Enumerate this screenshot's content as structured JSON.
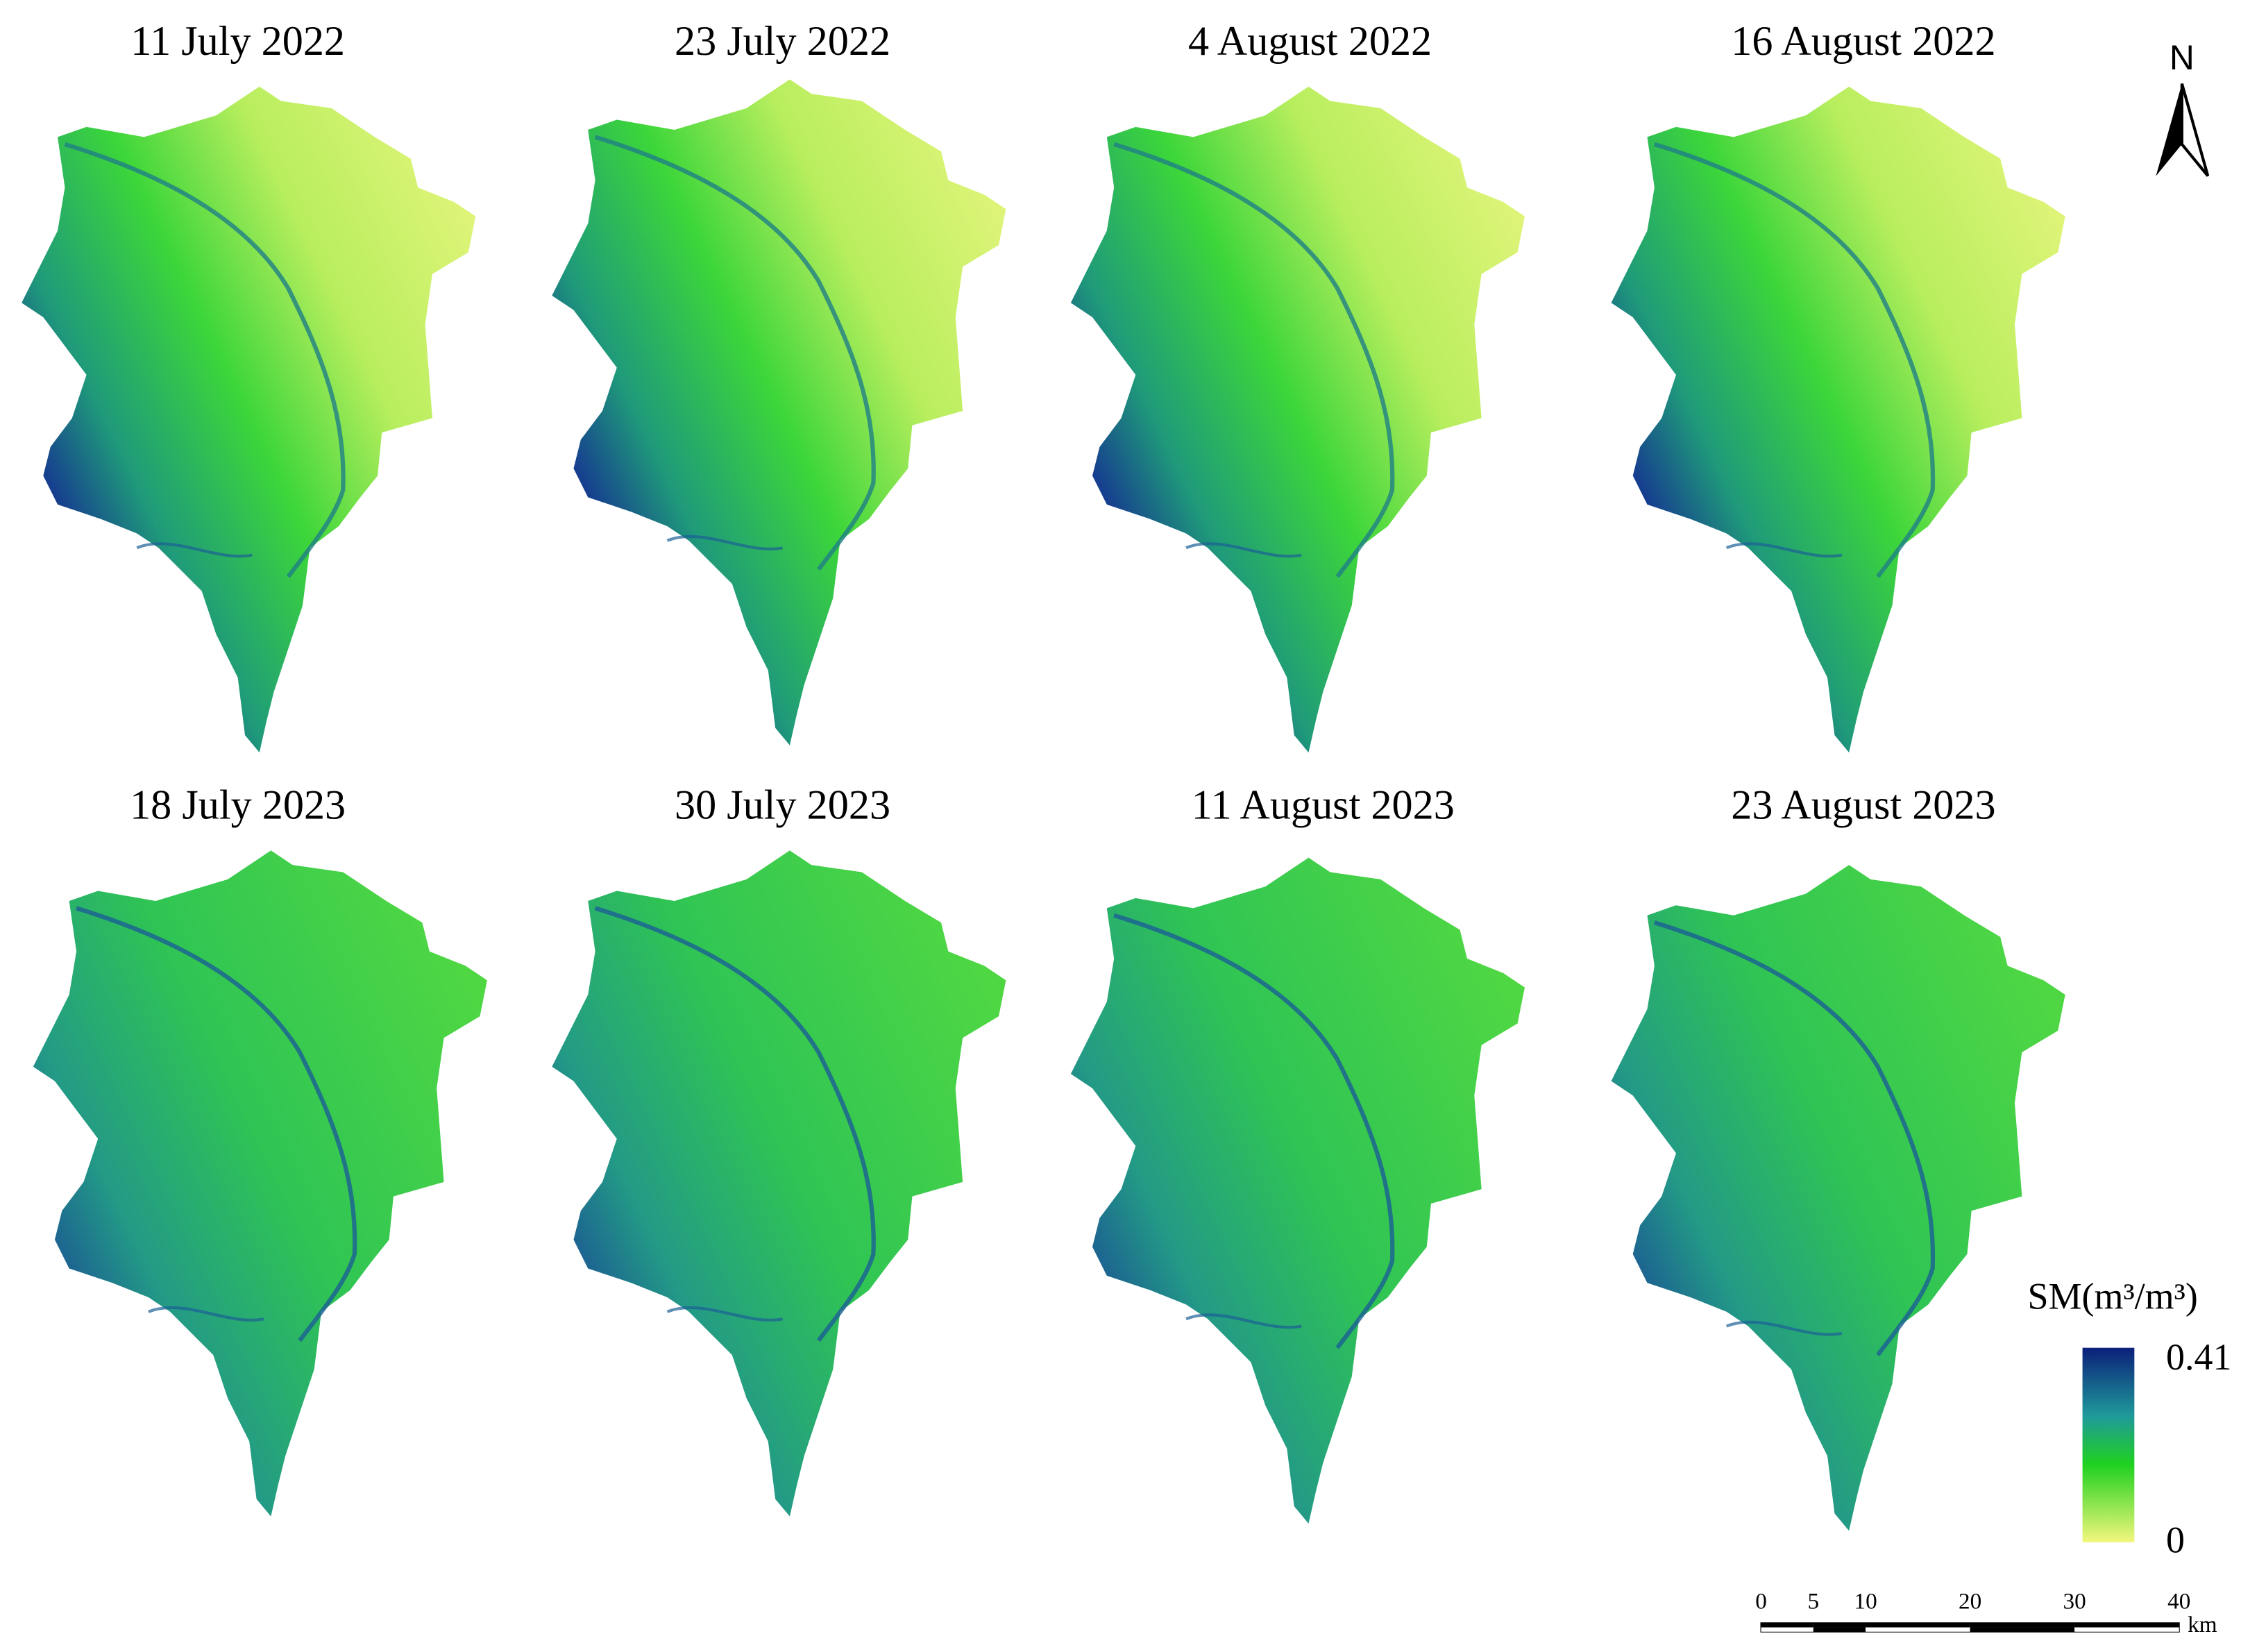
{
  "panels": [
    {
      "title": "11 July 2022"
    },
    {
      "title": "23 July 2022"
    },
    {
      "title": "4 August 2022"
    },
    {
      "title": "16 August 2022"
    },
    {
      "title": "18 July 2023"
    },
    {
      "title": "30 July 2023"
    },
    {
      "title": "11 August 2023"
    },
    {
      "title": "23 August 2023"
    }
  ],
  "north_arrow": {
    "label": "N"
  },
  "legend": {
    "title": "SM(m³/m³)",
    "max": 0.41,
    "min": 0
  },
  "scale_bar": {
    "ticks": [
      0,
      5,
      10,
      20,
      30,
      40
    ],
    "unit": "km"
  }
}
